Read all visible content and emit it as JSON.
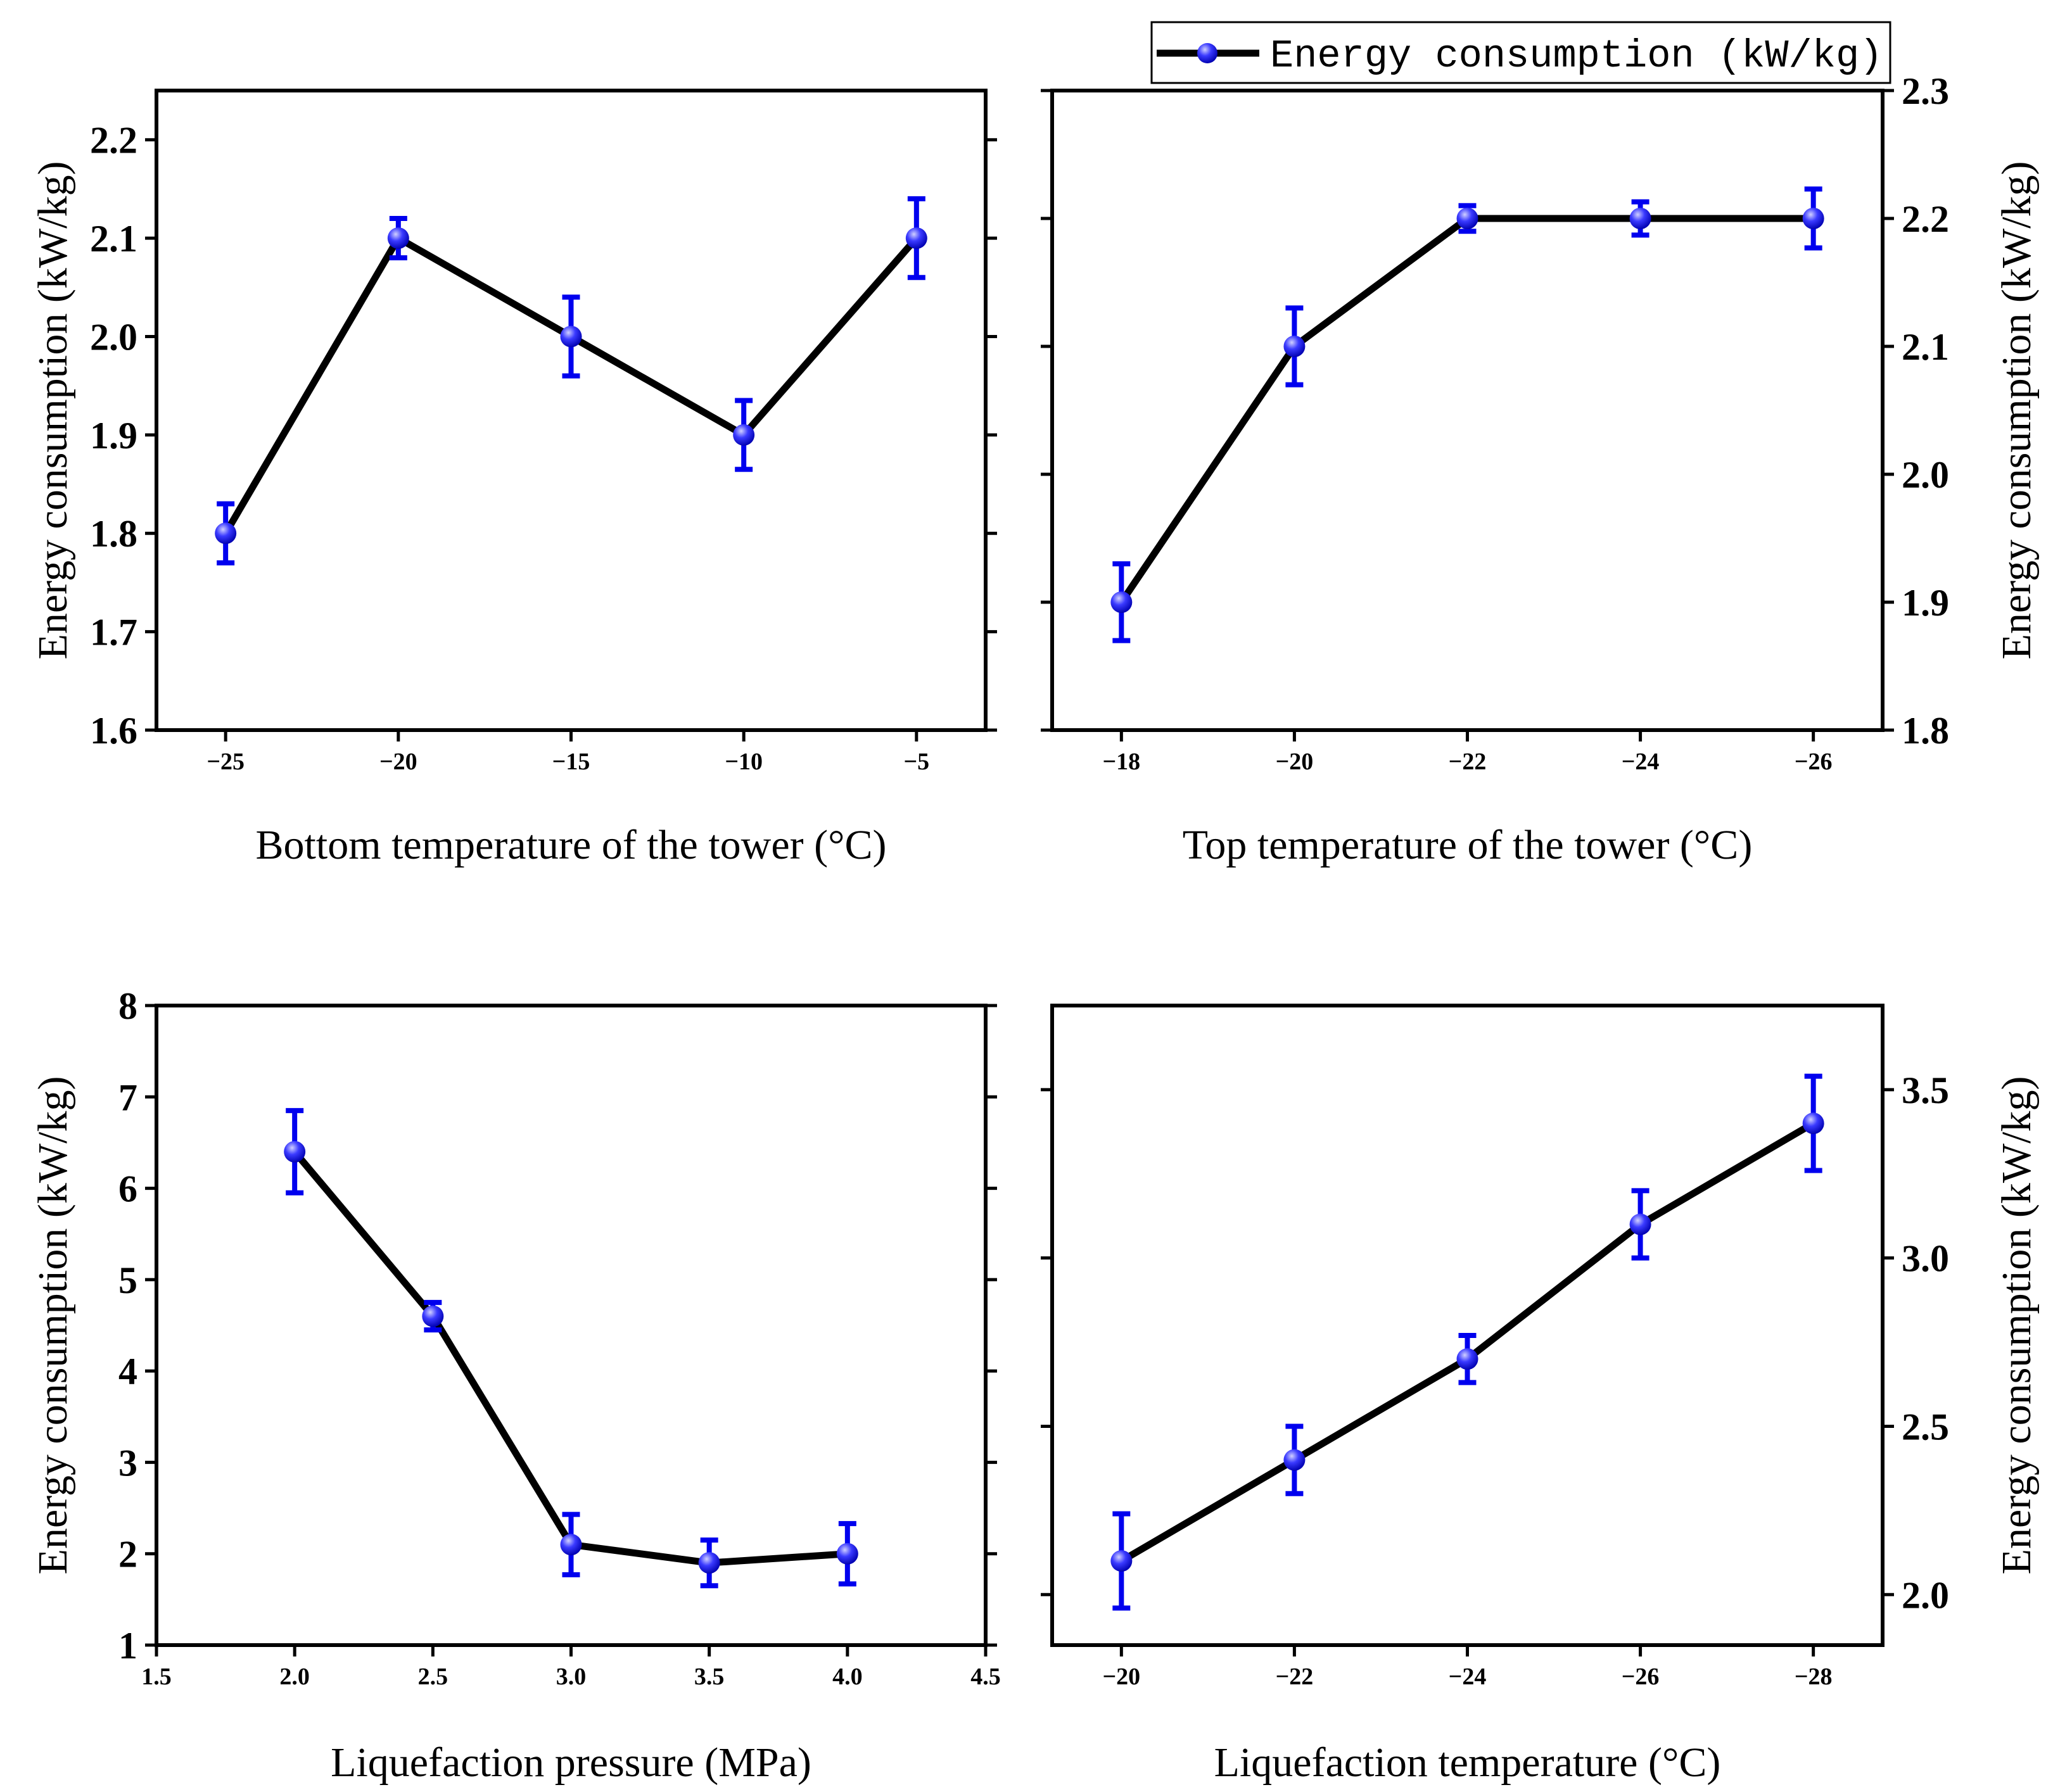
{
  "legend": {
    "label": "Energy consumption (kW/kg)",
    "line_color": "#000000",
    "marker_color": "#1a1aff"
  },
  "colors": {
    "line": "#000000",
    "error_bar": "#0000ee",
    "marker_fill": "#2020ff",
    "marker_highlight": "#c8c8ff"
  },
  "chart_data": [
    {
      "type": "line",
      "panel": "top-left",
      "xlabel": "Bottom temperature of the tower (°C)",
      "ylabel": "Energy consumption (kW/kg)",
      "y_axis_side": "left",
      "categories": [
        "−25",
        "−20",
        "−15",
        "−10",
        "−5"
      ],
      "values": [
        1.8,
        2.1,
        2.0,
        1.9,
        2.1
      ],
      "errors": [
        0.03,
        0.02,
        0.04,
        0.035,
        0.04
      ],
      "ylim": [
        1.6,
        2.25
      ],
      "yticks": [
        1.6,
        1.7,
        1.8,
        1.9,
        2.0,
        2.1,
        2.2
      ],
      "ytick_labels": [
        "1.6",
        "1.7",
        "1.8",
        "1.9",
        "2.0",
        "2.1",
        "2.2"
      ]
    },
    {
      "type": "line",
      "panel": "top-right",
      "xlabel": "Top temperature of the tower (°C)",
      "ylabel": "Energy consumption (kW/kg)",
      "y_axis_side": "right",
      "categories": [
        "−18",
        "−20",
        "−22",
        "−24",
        "−26"
      ],
      "values": [
        1.9,
        2.1,
        2.2,
        2.2,
        2.2
      ],
      "errors": [
        0.03,
        0.03,
        0.01,
        0.013,
        0.023
      ],
      "ylim": [
        1.8,
        2.3
      ],
      "yticks": [
        1.8,
        1.9,
        2.0,
        2.1,
        2.2,
        2.3
      ],
      "ytick_labels": [
        "1.8",
        "1.9",
        "2.0",
        "2.1",
        "2.2",
        "2.3"
      ]
    },
    {
      "type": "line",
      "panel": "bottom-left",
      "xlabel": "Liquefaction pressure (MPa)",
      "ylabel": "Energy consumption (kW/kg)",
      "y_axis_side": "left",
      "x": [
        2.0,
        2.5,
        3.0,
        3.5,
        4.0
      ],
      "values": [
        6.4,
        4.6,
        2.1,
        1.9,
        2.0
      ],
      "errors": [
        0.45,
        0.15,
        0.33,
        0.25,
        0.33
      ],
      "xlim": [
        1.5,
        4.5
      ],
      "xticks": [
        1.5,
        2.0,
        2.5,
        3.0,
        3.5,
        4.0,
        4.5
      ],
      "xtick_labels": [
        "1.5",
        "2.0",
        "2.5",
        "3.0",
        "3.5",
        "4.0",
        "4.5"
      ],
      "ylim": [
        1,
        8
      ],
      "yticks": [
        1,
        2,
        3,
        4,
        5,
        6,
        7,
        8
      ],
      "ytick_labels": [
        "1",
        "2",
        "3",
        "4",
        "5",
        "6",
        "7",
        "8"
      ]
    },
    {
      "type": "line",
      "panel": "bottom-right",
      "xlabel": "Liquefaction temperature (°C)",
      "ylabel": "Energy consumption (kW/kg)",
      "y_axis_side": "right",
      "categories": [
        "−20",
        "−22",
        "−24",
        "−26",
        "−28"
      ],
      "values": [
        2.1,
        2.4,
        2.7,
        3.1,
        3.4
      ],
      "errors": [
        0.14,
        0.1,
        0.07,
        0.1,
        0.14
      ],
      "ylim": [
        1.85,
        3.75
      ],
      "yticks": [
        2.0,
        2.5,
        3.0,
        3.5
      ],
      "ytick_labels": [
        "2.0",
        "2.5",
        "3.0",
        "3.5"
      ]
    }
  ]
}
